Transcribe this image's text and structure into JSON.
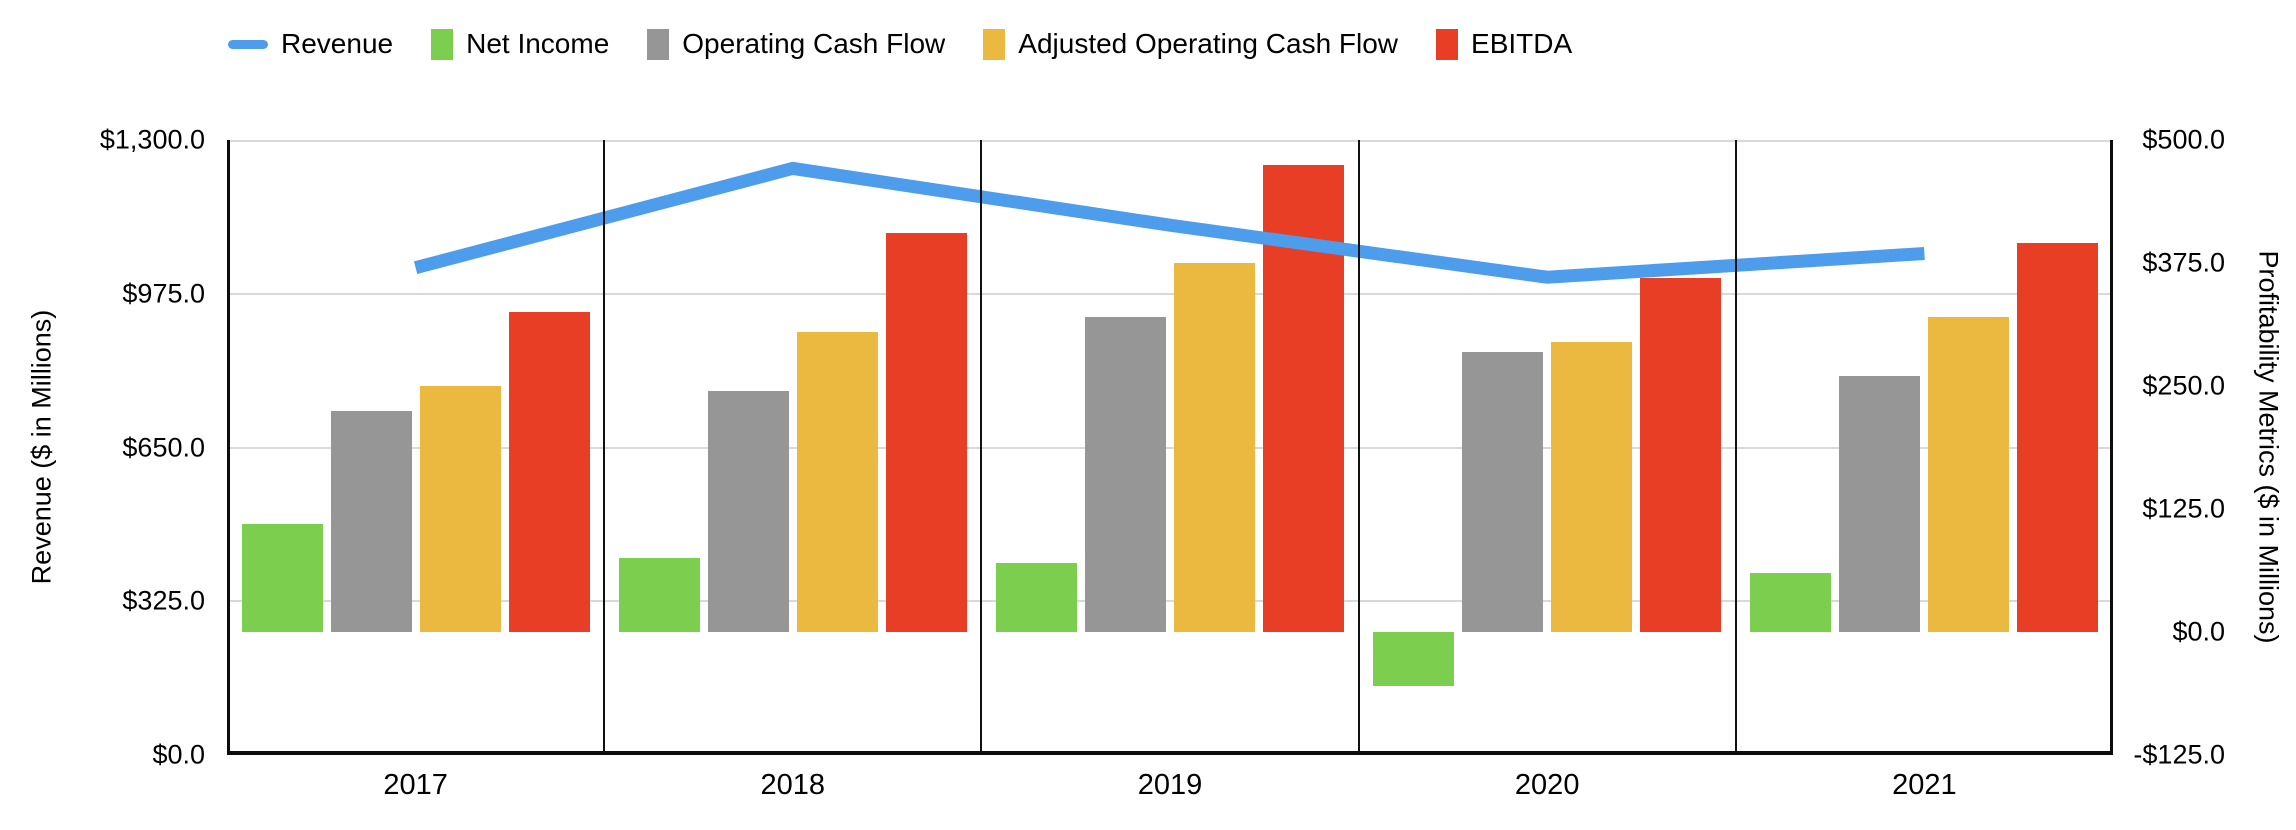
{
  "chart_data": {
    "type": "combo-bar-line",
    "categories": [
      "2017",
      "2018",
      "2019",
      "2020",
      "2021"
    ],
    "series": [
      {
        "name": "Revenue",
        "kind": "line",
        "axis": "left",
        "color": "#4e9cec",
        "values": [
          1030,
          1240,
          1120,
          1010,
          1060
        ]
      },
      {
        "name": "Net Income",
        "kind": "bar",
        "axis": "right",
        "color": "#7cce4e",
        "values": [
          110,
          75,
          70,
          -55,
          60
        ]
      },
      {
        "name": "Operating Cash Flow",
        "kind": "bar",
        "axis": "right",
        "color": "#969696",
        "values": [
          225,
          245,
          320,
          285,
          260
        ]
      },
      {
        "name": "Adjusted Operating Cash Flow",
        "kind": "bar",
        "axis": "right",
        "color": "#ebb840",
        "values": [
          250,
          305,
          375,
          295,
          320
        ]
      },
      {
        "name": "EBITDA",
        "kind": "bar",
        "axis": "right",
        "color": "#e83e26",
        "values": [
          325,
          405,
          475,
          360,
          395
        ]
      }
    ],
    "left_axis": {
      "title": "Revenue ($ in Millions)",
      "ticks": [
        "$1,300.0",
        "$975.0",
        "$650.0",
        "$325.0",
        "$0.0"
      ],
      "range": [
        0,
        1300
      ]
    },
    "right_axis": {
      "title": "Profitability Metrics ($ in Millions)",
      "ticks": [
        "$500.0",
        "$375.0",
        "$250.0",
        "$125.0",
        "$0.0",
        "-$125.0"
      ],
      "range": [
        -125,
        500
      ]
    },
    "grid": true,
    "legend_position": "top"
  }
}
